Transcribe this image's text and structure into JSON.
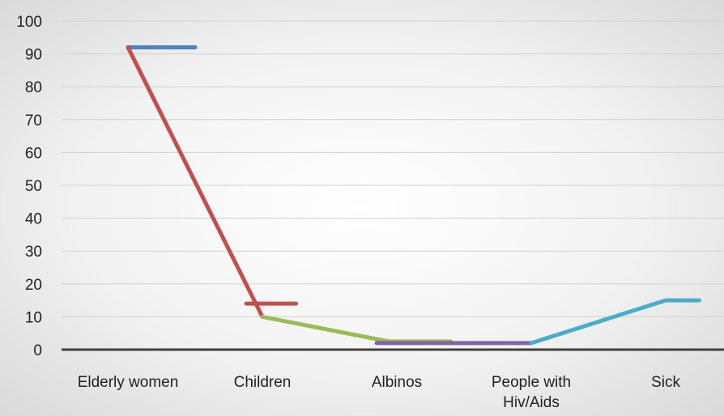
{
  "chart_data": {
    "type": "line",
    "categories": [
      "Elderly women",
      "Children",
      "Albinos",
      "People with Hiv/Aids",
      "Sick"
    ],
    "category_lines": [
      [
        "Elderly women"
      ],
      [
        "Children"
      ],
      [
        "Albinos"
      ],
      [
        "People with",
        "Hiv/Aids"
      ],
      [
        "Sick"
      ]
    ],
    "ylim": [
      0,
      100
    ],
    "yticks": [
      0,
      10,
      20,
      30,
      40,
      50,
      60,
      70,
      80,
      90,
      100
    ],
    "grid": true,
    "legend": "none",
    "series": [
      {
        "color": "#4f81bd",
        "segment": [
          [
            0,
            92
          ],
          [
            0.5,
            92
          ]
        ]
      },
      {
        "color": "#c0504d",
        "segment": [
          [
            0,
            92
          ],
          [
            1,
            10
          ]
        ]
      },
      {
        "color": "#c0504d",
        "segment": [
          [
            0.88,
            14
          ],
          [
            1.25,
            14
          ]
        ]
      },
      {
        "color": "#9bbb59",
        "segment": [
          [
            1,
            10
          ],
          [
            2,
            2
          ]
        ]
      },
      {
        "color": "#9bbb59",
        "segment": [
          [
            1.9,
            2.5
          ],
          [
            2.4,
            2.5
          ]
        ]
      },
      {
        "color": "#8064a2",
        "segment": [
          [
            1.85,
            2
          ],
          [
            3,
            2
          ]
        ]
      },
      {
        "color": "#4bacc6",
        "segment": [
          [
            3,
            2
          ],
          [
            4,
            15
          ]
        ]
      },
      {
        "color": "#4bacc6",
        "segment": [
          [
            4,
            15
          ],
          [
            4.25,
            15
          ]
        ]
      }
    ]
  }
}
